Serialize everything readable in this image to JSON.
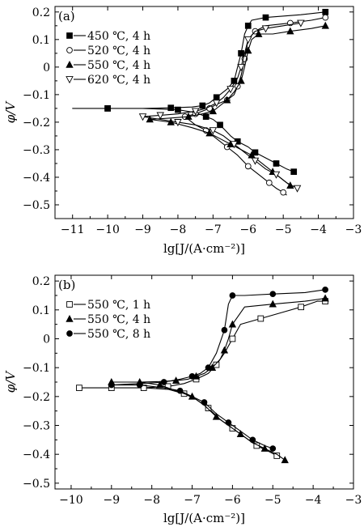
{
  "chart_data": [
    {
      "type": "line",
      "panel_label": "(a)",
      "xlabel": "lg[J/(A·cm⁻²)]",
      "ylabel": "φ/V",
      "xlim": [
        -11.5,
        -3
      ],
      "ylim": [
        -0.55,
        0.22
      ],
      "xticks": [
        -11,
        -10,
        -9,
        -8,
        -7,
        -6,
        -5,
        -4,
        -3
      ],
      "yticks": [
        -0.5,
        -0.4,
        -0.3,
        -0.2,
        -0.1,
        0,
        0.1,
        0.2
      ],
      "xtick_labels": [
        "−11",
        "−10",
        "−9",
        "−8",
        "−7",
        "−6",
        "−5",
        "−4",
        "−3"
      ],
      "ytick_labels": [
        "−0.5",
        "−0.4",
        "−0.3",
        "−0.2",
        "−0.1",
        "0",
        "0.1",
        "0.2"
      ],
      "legend_position": "top-left",
      "series": [
        {
          "name": "450 ℃, 4 h",
          "marker": "filled-square",
          "x": [
            -3.8,
            -4.5,
            -5.5,
            -5.9,
            -6.0,
            -6.1,
            -6.2,
            -6.3,
            -6.4,
            -6.6,
            -6.9,
            -7.1,
            -7.3,
            -7.6,
            -8.2,
            -9.0,
            -10.0,
            -11.0,
            -10.0,
            -9.0,
            -8.0,
            -7.5,
            -7.2,
            -7.0,
            -6.8,
            -6.5,
            -6.3,
            -6.0,
            -5.8,
            -5.5,
            -5.2,
            -4.9,
            -4.7
          ],
          "y": [
            0.2,
            0.19,
            0.18,
            0.17,
            0.15,
            0.12,
            0.05,
            0.0,
            -0.05,
            -0.08,
            -0.11,
            -0.13,
            -0.14,
            -0.145,
            -0.148,
            -0.15,
            -0.15,
            -0.15,
            -0.15,
            -0.15,
            -0.155,
            -0.165,
            -0.18,
            -0.19,
            -0.21,
            -0.25,
            -0.27,
            -0.29,
            -0.31,
            -0.33,
            -0.35,
            -0.37,
            -0.38
          ]
        },
        {
          "name": "520 ℃, 4 h",
          "marker": "open-circle",
          "x": [
            -3.8,
            -4.2,
            -4.8,
            -5.5,
            -5.8,
            -6.0,
            -6.1,
            -6.2,
            -6.3,
            -6.4,
            -6.6,
            -6.9,
            -7.1,
            -7.3,
            -7.5,
            -7.8,
            -7.8,
            -7.5,
            -7.2,
            -6.9,
            -6.6,
            -6.3,
            -6.0,
            -5.7,
            -5.4,
            -5.2,
            -5.0,
            -4.9
          ],
          "y": [
            0.18,
            0.17,
            0.16,
            0.15,
            0.13,
            0.1,
            0.03,
            -0.03,
            -0.07,
            -0.1,
            -0.12,
            -0.135,
            -0.15,
            -0.16,
            -0.17,
            -0.18,
            -0.18,
            -0.21,
            -0.23,
            -0.26,
            -0.29,
            -0.32,
            -0.36,
            -0.39,
            -0.42,
            -0.44,
            -0.455,
            -0.465
          ]
        },
        {
          "name": "550 ℃, 4 h",
          "marker": "filled-triangle",
          "x": [
            -3.8,
            -4.2,
            -4.8,
            -5.3,
            -5.7,
            -5.9,
            -6.0,
            -6.1,
            -6.2,
            -6.4,
            -6.6,
            -6.8,
            -7.0,
            -7.3,
            -7.7,
            -8.2,
            -8.8,
            -8.8,
            -8.2,
            -7.6,
            -7.1,
            -6.8,
            -6.5,
            -6.2,
            -5.9,
            -5.6,
            -5.3,
            -5.0,
            -4.8
          ],
          "y": [
            0.15,
            0.14,
            0.13,
            0.12,
            0.12,
            0.1,
            0.06,
            0.0,
            -0.05,
            -0.09,
            -0.12,
            -0.14,
            -0.16,
            -0.17,
            -0.18,
            -0.185,
            -0.19,
            -0.19,
            -0.2,
            -0.22,
            -0.24,
            -0.26,
            -0.28,
            -0.3,
            -0.32,
            -0.35,
            -0.38,
            -0.41,
            -0.43
          ]
        },
        {
          "name": "620 ℃, 4 h",
          "marker": "open-triangle-down",
          "x": [
            -4.5,
            -5.0,
            -5.5,
            -5.8,
            -6.0,
            -6.1,
            -6.2,
            -6.3,
            -6.5,
            -6.7,
            -6.9,
            -7.2,
            -7.5,
            -8.0,
            -8.5,
            -9.0,
            -9.0,
            -8.5,
            -8.0,
            -7.5,
            -7.0,
            -6.7,
            -6.4,
            -6.1,
            -5.8,
            -5.5,
            -5.2,
            -4.9,
            -4.6
          ],
          "y": [
            0.16,
            0.15,
            0.14,
            0.13,
            0.1,
            0.05,
            0.0,
            -0.04,
            -0.08,
            -0.11,
            -0.13,
            -0.15,
            -0.16,
            -0.17,
            -0.175,
            -0.18,
            -0.18,
            -0.19,
            -0.2,
            -0.21,
            -0.23,
            -0.25,
            -0.28,
            -0.31,
            -0.34,
            -0.37,
            -0.39,
            -0.42,
            -0.44
          ]
        }
      ]
    },
    {
      "type": "line",
      "panel_label": "(b)",
      "xlabel": "lg[J/(A·cm⁻²)]",
      "ylabel": "φ/V",
      "xlim": [
        -10.4,
        -3
      ],
      "ylim": [
        -0.52,
        0.22
      ],
      "xticks": [
        -10,
        -9,
        -8,
        -7,
        -6,
        -5,
        -4,
        -3
      ],
      "yticks": [
        -0.5,
        -0.4,
        -0.3,
        -0.2,
        -0.1,
        0,
        0.1,
        0.2
      ],
      "xtick_labels": [
        "−10",
        "−9",
        "−8",
        "−7",
        "−6",
        "−5",
        "−4",
        "−3"
      ],
      "ytick_labels": [
        "−0.5",
        "−0.4",
        "−0.3",
        "−0.2",
        "−0.1",
        "0",
        "0.1",
        "0.2"
      ],
      "legend_position": "top-left",
      "series": [
        {
          "name": "550 ℃, 1 h",
          "marker": "open-square",
          "x": [
            -3.7,
            -3.9,
            -4.3,
            -4.8,
            -5.3,
            -5.8,
            -6.0,
            -6.2,
            -6.4,
            -6.6,
            -6.9,
            -7.2,
            -7.6,
            -8.2,
            -9.0,
            -9.8,
            -9.8,
            -9.0,
            -8.2,
            -7.6,
            -7.2,
            -6.9,
            -6.6,
            -6.3,
            -6.0,
            -5.7,
            -5.4,
            -5.1,
            -4.9,
            -4.8
          ],
          "y": [
            0.13,
            0.13,
            0.11,
            0.09,
            0.07,
            0.05,
            0.0,
            -0.05,
            -0.09,
            -0.12,
            -0.14,
            -0.155,
            -0.165,
            -0.17,
            -0.17,
            -0.17,
            -0.17,
            -0.17,
            -0.17,
            -0.175,
            -0.19,
            -0.21,
            -0.24,
            -0.28,
            -0.31,
            -0.34,
            -0.37,
            -0.39,
            -0.405,
            -0.41
          ]
        },
        {
          "name": "550 ℃, 4 h",
          "marker": "filled-triangle",
          "x": [
            -3.7,
            -4.2,
            -5.0,
            -5.7,
            -6.0,
            -6.1,
            -6.2,
            -6.3,
            -6.5,
            -6.7,
            -6.9,
            -7.1,
            -7.4,
            -7.8,
            -8.3,
            -9.0,
            -9.0,
            -8.3,
            -7.8,
            -7.4,
            -7.0,
            -6.7,
            -6.4,
            -6.1,
            -5.8,
            -5.5,
            -5.2,
            -4.9,
            -4.7
          ],
          "y": [
            0.14,
            0.13,
            0.12,
            0.11,
            0.05,
            0.0,
            -0.04,
            -0.07,
            -0.1,
            -0.12,
            -0.13,
            -0.14,
            -0.145,
            -0.148,
            -0.15,
            -0.15,
            -0.15,
            -0.15,
            -0.16,
            -0.18,
            -0.2,
            -0.23,
            -0.27,
            -0.3,
            -0.33,
            -0.36,
            -0.38,
            -0.4,
            -0.42
          ]
        },
        {
          "name": "550 ℃, 8 h",
          "marker": "filled-circle",
          "x": [
            -3.7,
            -4.2,
            -5.0,
            -5.7,
            -6.0,
            -6.1,
            -6.2,
            -6.4,
            -6.6,
            -6.8,
            -7.0,
            -7.3,
            -7.7,
            -8.3,
            -9.0,
            -9.0,
            -8.3,
            -7.7,
            -7.3,
            -7.0,
            -6.7,
            -6.4,
            -6.1,
            -5.8,
            -5.5,
            -5.2,
            -5.0
          ],
          "y": [
            0.17,
            0.16,
            0.155,
            0.15,
            0.15,
            0.12,
            0.03,
            -0.05,
            -0.1,
            -0.12,
            -0.13,
            -0.14,
            -0.15,
            -0.155,
            -0.16,
            -0.16,
            -0.16,
            -0.17,
            -0.18,
            -0.2,
            -0.22,
            -0.26,
            -0.29,
            -0.32,
            -0.35,
            -0.37,
            -0.38
          ]
        }
      ]
    }
  ]
}
